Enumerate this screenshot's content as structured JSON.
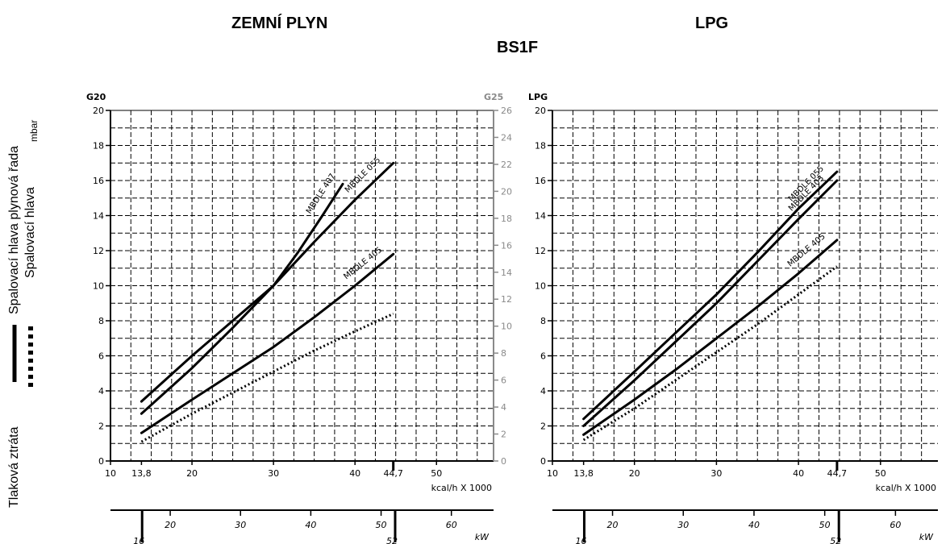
{
  "headings": {
    "natural_gas": "ZEMNÍ PLYN",
    "lpg": "LPG",
    "model": "BS1F"
  },
  "side_labels": {
    "gas_train": "Spalovací hlava plynová řada",
    "head": "Spalovací hlava",
    "unit": "mbar",
    "pressure_loss": "Tlaková ztráta"
  },
  "colors": {
    "line": "#000000",
    "grid": "#000000",
    "axis_right": "#8a8a8a"
  },
  "chart_data": [
    {
      "type": "line",
      "title": "",
      "left_axis_title": "G20",
      "right_axis_title": "G25",
      "xlabel": "kcal/h X 1000",
      "xlabel2": "kW",
      "xlim": [
        10,
        57
      ],
      "ylim": [
        0,
        20
      ],
      "ylim_right": [
        0,
        26
      ],
      "x_ticks": [
        "10",
        "13,8",
        "20",
        "30",
        "40",
        "44,7",
        "50"
      ],
      "x_tick_values": [
        10,
        13.8,
        20,
        30,
        40,
        44.7,
        50
      ],
      "y_ticks": [
        "0",
        "2",
        "4",
        "6",
        "8",
        "10",
        "12",
        "14",
        "16",
        "18",
        "20"
      ],
      "y_right_ticks": [
        "0",
        "2",
        "4",
        "6",
        "8",
        "10",
        "12",
        "14",
        "16",
        "18",
        "20",
        "22",
        "24",
        "26"
      ],
      "kw_ticks": [
        "16",
        "20",
        "30",
        "40",
        "50",
        "52",
        "60"
      ],
      "kw_tick_values": [
        16,
        20,
        30,
        40,
        50,
        52,
        60
      ],
      "kw_range": [
        11.5,
        66
      ],
      "grid": true,
      "series": [
        {
          "name": "MBDLE 407",
          "style": "solid",
          "x": [
            13.8,
            20,
            25,
            30,
            33,
            36,
            38.5
          ],
          "y": [
            2.7,
            5.3,
            7.6,
            10.0,
            11.9,
            14.0,
            15.8
          ]
        },
        {
          "name": "MBDLE 055",
          "style": "solid",
          "x": [
            13.8,
            20,
            25,
            30,
            35,
            40,
            44.7
          ],
          "y": [
            3.4,
            6.0,
            8.0,
            10.0,
            12.5,
            14.9,
            17.0
          ]
        },
        {
          "name": "MBDLE 405",
          "style": "solid",
          "x": [
            13.8,
            20,
            25,
            30,
            35,
            40,
            44.7
          ],
          "y": [
            1.6,
            3.5,
            5.0,
            6.5,
            8.2,
            10.0,
            11.8
          ]
        },
        {
          "name": "",
          "style": "dotted",
          "x": [
            13.8,
            20,
            25,
            30,
            35,
            40,
            44.7
          ],
          "y": [
            1.1,
            2.7,
            3.9,
            5.1,
            6.3,
            7.4,
            8.4
          ]
        }
      ]
    },
    {
      "type": "line",
      "title": "",
      "left_axis_title": "LPG",
      "xlabel": "kcal/h X 1000",
      "xlabel2": "kW",
      "xlim": [
        10,
        57
      ],
      "ylim": [
        0,
        20
      ],
      "x_ticks": [
        "10",
        "13,8",
        "20",
        "30",
        "40",
        "44,7",
        "50"
      ],
      "x_tick_values": [
        10,
        13.8,
        20,
        30,
        40,
        44.7,
        50
      ],
      "y_ticks": [
        "0",
        "2",
        "4",
        "6",
        "8",
        "10",
        "12",
        "14",
        "16",
        "18",
        "20"
      ],
      "kw_ticks": [
        "16",
        "20",
        "30",
        "40",
        "50",
        "52",
        "60"
      ],
      "kw_tick_values": [
        16,
        20,
        30,
        40,
        50,
        52,
        60
      ],
      "kw_range": [
        11.5,
        66
      ],
      "grid": true,
      "series": [
        {
          "name": "MBDLE 055",
          "style": "solid",
          "x": [
            13.8,
            20,
            25,
            30,
            35,
            40,
            44.7
          ],
          "y": [
            2.4,
            5.1,
            7.3,
            9.5,
            11.9,
            14.4,
            16.5
          ]
        },
        {
          "name": "MBDLE 403",
          "style": "solid",
          "x": [
            13.8,
            20,
            25,
            30,
            35,
            40,
            44.7
          ],
          "y": [
            2.0,
            4.6,
            6.8,
            9.0,
            11.4,
            13.8,
            16.0
          ]
        },
        {
          "name": "MBDLE 405",
          "style": "solid",
          "x": [
            13.8,
            20,
            25,
            30,
            35,
            40,
            44.7
          ],
          "y": [
            1.5,
            3.5,
            5.2,
            7.0,
            8.8,
            10.7,
            12.6
          ]
        },
        {
          "name": "",
          "style": "dotted",
          "x": [
            13.8,
            20,
            25,
            30,
            35,
            40,
            44.7
          ],
          "y": [
            1.2,
            3.0,
            4.6,
            6.2,
            7.8,
            9.5,
            11.1
          ]
        }
      ]
    }
  ]
}
